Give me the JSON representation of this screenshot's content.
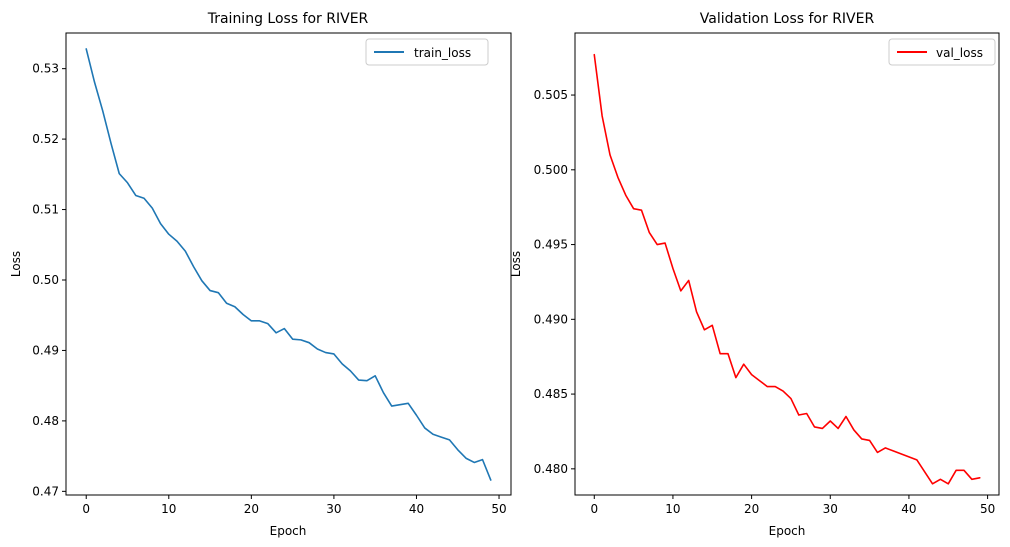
{
  "chart_data": [
    {
      "type": "line",
      "title": "Training Loss for RIVER",
      "xlabel": "Epoch",
      "ylabel": "Loss",
      "xlim": [
        -2.45,
        51.45
      ],
      "ylim": [
        0.46948,
        0.53506
      ],
      "xticks": [
        0,
        10,
        20,
        30,
        40,
        50
      ],
      "yticks": [
        0.47,
        0.48,
        0.49,
        0.5,
        0.51,
        0.52,
        0.53
      ],
      "ytick_labels": [
        "0.47",
        "0.48",
        "0.49",
        "0.50",
        "0.51",
        "0.52",
        "0.53"
      ],
      "legend_position": "upper right",
      "series": [
        {
          "name": "train_loss",
          "color": "#1f77b4",
          "x": [
            0,
            1,
            2,
            3,
            4,
            5,
            6,
            7,
            8,
            9,
            10,
            11,
            12,
            13,
            14,
            15,
            16,
            17,
            18,
            19,
            20,
            21,
            22,
            23,
            24,
            25,
            26,
            27,
            28,
            29,
            30,
            31,
            32,
            33,
            34,
            35,
            36,
            37,
            38,
            39,
            40,
            41,
            42,
            43,
            44,
            45,
            46,
            47,
            48,
            49
          ],
          "values": [
            0.5328,
            0.5281,
            0.524,
            0.5194,
            0.5151,
            0.5138,
            0.512,
            0.5116,
            0.5102,
            0.508,
            0.5065,
            0.5055,
            0.5041,
            0.5019,
            0.4999,
            0.4985,
            0.4982,
            0.4967,
            0.4962,
            0.4951,
            0.4942,
            0.4942,
            0.4938,
            0.4925,
            0.4931,
            0.4916,
            0.4915,
            0.4911,
            0.4902,
            0.4897,
            0.4895,
            0.4881,
            0.4871,
            0.4858,
            0.4857,
            0.4864,
            0.484,
            0.4821,
            0.4823,
            0.4825,
            0.4808,
            0.479,
            0.4781,
            0.4777,
            0.4773,
            0.4759,
            0.4747,
            0.4741,
            0.4745,
            0.4716
          ]
        }
      ]
    },
    {
      "type": "line",
      "title": "Validation Loss for RIVER",
      "xlabel": "Epoch",
      "ylabel": "Loss",
      "xlim": [
        -2.45,
        51.45
      ],
      "ylim": [
        0.47825,
        0.50915
      ],
      "xticks": [
        0,
        10,
        20,
        30,
        40,
        50
      ],
      "yticks": [
        0.48,
        0.485,
        0.49,
        0.495,
        0.5,
        0.505
      ],
      "ytick_labels": [
        "0.480",
        "0.485",
        "0.490",
        "0.495",
        "0.500",
        "0.505"
      ],
      "legend_position": "upper right",
      "series": [
        {
          "name": "val_loss",
          "color": "#ff0000",
          "x": [
            0,
            1,
            2,
            3,
            4,
            5,
            6,
            7,
            8,
            9,
            10,
            11,
            12,
            13,
            14,
            15,
            16,
            17,
            18,
            19,
            20,
            21,
            22,
            23,
            24,
            25,
            26,
            27,
            28,
            29,
            30,
            31,
            32,
            33,
            34,
            35,
            36,
            37,
            38,
            39,
            40,
            41,
            42,
            43,
            44,
            45,
            46,
            47,
            48,
            49
          ],
          "values": [
            0.5077,
            0.5036,
            0.501,
            0.4995,
            0.4983,
            0.4974,
            0.4973,
            0.4958,
            0.495,
            0.4951,
            0.4934,
            0.4919,
            0.4926,
            0.4905,
            0.4893,
            0.4896,
            0.4877,
            0.4877,
            0.4861,
            0.487,
            0.4863,
            0.4859,
            0.4855,
            0.4855,
            0.4852,
            0.4847,
            0.4836,
            0.4837,
            0.4828,
            0.4827,
            0.4832,
            0.4827,
            0.4835,
            0.4826,
            0.482,
            0.4819,
            0.4811,
            0.4814,
            0.4812,
            0.481,
            0.4808,
            0.4806,
            0.4798,
            0.479,
            0.4793,
            0.479,
            0.4799,
            0.4799,
            0.4793,
            0.4794
          ]
        }
      ]
    }
  ]
}
